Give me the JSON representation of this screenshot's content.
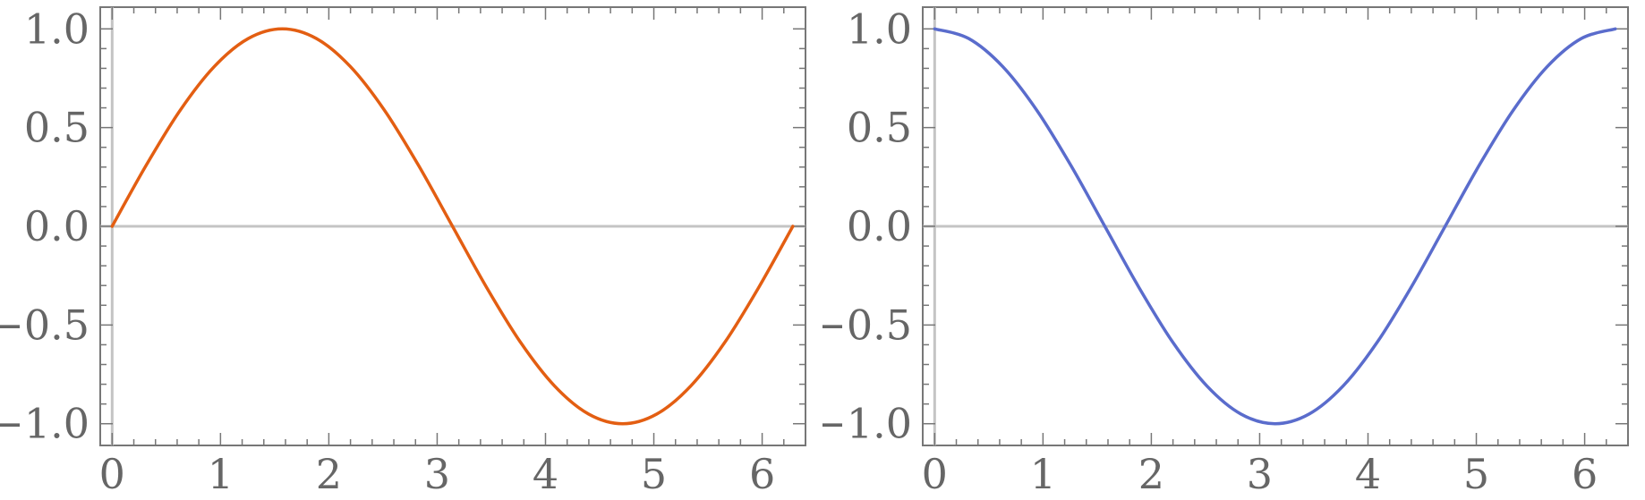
{
  "chart_data": [
    {
      "type": "line",
      "title": "",
      "xlabel": "",
      "ylabel": "",
      "xlim": [
        -0.11,
        6.4
      ],
      "ylim": [
        -1.11,
        1.11
      ],
      "x_ticks": [
        0,
        1,
        2,
        3,
        4,
        5,
        6
      ],
      "x_tick_labels": [
        "0",
        "1",
        "2",
        "3",
        "4",
        "5",
        "6"
      ],
      "y_ticks": [
        -1.0,
        -0.5,
        0.0,
        0.5,
        1.0
      ],
      "y_tick_labels": [
        "−1.0",
        "−0.5",
        "0.0",
        "0.5",
        "1.0"
      ],
      "grid": false,
      "series": [
        {
          "color": "#e35e12",
          "x": [
            0,
            0.3142,
            0.6283,
            0.9425,
            1.2566,
            1.5708,
            1.885,
            2.1991,
            2.5133,
            2.8274,
            3.1416,
            3.4558,
            3.7699,
            4.0841,
            4.3982,
            4.7124,
            5.0265,
            5.3407,
            5.6549,
            5.969,
            6.2832
          ],
          "y": [
            0,
            0.309,
            0.588,
            0.809,
            0.951,
            1.0,
            0.951,
            0.809,
            0.588,
            0.309,
            0,
            -0.309,
            -0.588,
            -0.809,
            -0.951,
            -1.0,
            -0.951,
            -0.809,
            -0.588,
            -0.309,
            0
          ]
        }
      ]
    },
    {
      "type": "line",
      "title": "",
      "xlabel": "",
      "ylabel": "",
      "xlim": [
        -0.11,
        6.4
      ],
      "ylim": [
        -1.11,
        1.11
      ],
      "x_ticks": [
        0,
        1,
        2,
        3,
        4,
        5,
        6
      ],
      "x_tick_labels": [
        "0",
        "1",
        "2",
        "3",
        "4",
        "5",
        "6"
      ],
      "y_ticks": [
        -1.0,
        -0.5,
        0.0,
        0.5,
        1.0
      ],
      "y_tick_labels": [
        "−1.0",
        "−0.5",
        "0.0",
        "0.5",
        "1.0"
      ],
      "grid": false,
      "series": [
        {
          "color": "#5a6ccc",
          "x": [
            0,
            0.3142,
            0.6283,
            0.9425,
            1.2566,
            1.5708,
            1.885,
            2.1991,
            2.5133,
            2.8274,
            3.1416,
            3.4558,
            3.7699,
            4.0841,
            4.3982,
            4.7124,
            5.0265,
            5.3407,
            5.6549,
            5.969,
            6.2832
          ],
          "y": [
            1.0,
            0.951,
            0.809,
            0.588,
            0.309,
            0,
            -0.309,
            -0.588,
            -0.809,
            -0.951,
            -1.0,
            -0.951,
            -0.809,
            -0.588,
            -0.309,
            0,
            0.309,
            0.588,
            0.809,
            0.951,
            1.0
          ]
        }
      ]
    }
  ]
}
